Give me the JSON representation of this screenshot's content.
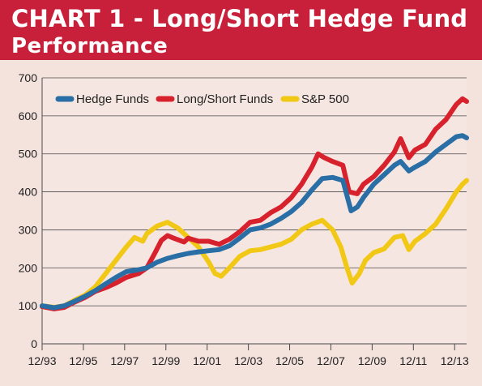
{
  "title": {
    "line1": "CHART 1 - Long/Short Hedge Fund",
    "line2": "Performance"
  },
  "colors": {
    "banner": "#c8203a",
    "background": "#f4e2dc",
    "plot_background": "#f6e6e1",
    "grid": "#4a4a4a",
    "hedge_funds": "#2a6ea6",
    "long_short": "#d7222e",
    "sp500": "#f2c816"
  },
  "chart_data": {
    "type": "line",
    "title": "CHART 1 - Long/Short Hedge Fund Performance",
    "xlabel": "",
    "ylabel": "",
    "ylim": [
      0,
      700
    ],
    "yticks": [
      "0",
      "100",
      "200",
      "300",
      "400",
      "500",
      "600",
      "700"
    ],
    "xticks": [
      "12/93",
      "12/95",
      "12/97",
      "12/99",
      "12/01",
      "12/03",
      "12/05",
      "12/07",
      "12/09",
      "12/11",
      "12/13"
    ],
    "xrange": [
      1993.92,
      2014.5
    ],
    "grid": true,
    "legend_position": "top-left",
    "series": [
      {
        "name": "Hedge Funds",
        "color": "#2a6ea6",
        "points": [
          [
            1993.92,
            100
          ],
          [
            1994.5,
            95
          ],
          [
            1995.0,
            100
          ],
          [
            1995.5,
            112
          ],
          [
            1996.0,
            125
          ],
          [
            1996.5,
            140
          ],
          [
            1997.0,
            158
          ],
          [
            1997.5,
            175
          ],
          [
            1998.0,
            190
          ],
          [
            1998.6,
            195
          ],
          [
            1999.0,
            200
          ],
          [
            1999.5,
            215
          ],
          [
            2000.0,
            225
          ],
          [
            2000.5,
            232
          ],
          [
            2001.0,
            238
          ],
          [
            2001.5,
            242
          ],
          [
            2002.0,
            245
          ],
          [
            2002.5,
            248
          ],
          [
            2003.0,
            258
          ],
          [
            2003.5,
            278
          ],
          [
            2004.0,
            300
          ],
          [
            2004.5,
            305
          ],
          [
            2005.0,
            315
          ],
          [
            2005.5,
            330
          ],
          [
            2006.0,
            348
          ],
          [
            2006.5,
            372
          ],
          [
            2007.0,
            405
          ],
          [
            2007.5,
            435
          ],
          [
            2008.0,
            438
          ],
          [
            2008.5,
            430
          ],
          [
            2008.9,
            350
          ],
          [
            2009.2,
            360
          ],
          [
            2009.5,
            385
          ],
          [
            2010.0,
            420
          ],
          [
            2010.5,
            445
          ],
          [
            2011.0,
            470
          ],
          [
            2011.3,
            480
          ],
          [
            2011.7,
            455
          ],
          [
            2012.0,
            465
          ],
          [
            2012.5,
            480
          ],
          [
            2013.0,
            505
          ],
          [
            2013.5,
            525
          ],
          [
            2014.0,
            545
          ],
          [
            2014.3,
            548
          ],
          [
            2014.5,
            542
          ]
        ]
      },
      {
        "name": "Long/Short Funds",
        "color": "#d7222e",
        "points": [
          [
            1993.92,
            98
          ],
          [
            1994.5,
            92
          ],
          [
            1995.0,
            96
          ],
          [
            1995.5,
            110
          ],
          [
            1996.0,
            122
          ],
          [
            1996.5,
            138
          ],
          [
            1997.0,
            148
          ],
          [
            1997.5,
            160
          ],
          [
            1998.0,
            175
          ],
          [
            1998.6,
            185
          ],
          [
            1999.0,
            200
          ],
          [
            1999.4,
            240
          ],
          [
            1999.7,
            272
          ],
          [
            2000.0,
            285
          ],
          [
            2000.3,
            278
          ],
          [
            2000.8,
            268
          ],
          [
            2001.0,
            278
          ],
          [
            2001.5,
            270
          ],
          [
            2002.0,
            270
          ],
          [
            2002.5,
            262
          ],
          [
            2003.0,
            275
          ],
          [
            2003.5,
            295
          ],
          [
            2004.0,
            320
          ],
          [
            2004.5,
            325
          ],
          [
            2005.0,
            345
          ],
          [
            2005.5,
            360
          ],
          [
            2006.0,
            385
          ],
          [
            2006.5,
            420
          ],
          [
            2007.0,
            465
          ],
          [
            2007.3,
            500
          ],
          [
            2007.6,
            490
          ],
          [
            2008.0,
            480
          ],
          [
            2008.5,
            470
          ],
          [
            2008.8,
            400
          ],
          [
            2009.2,
            395
          ],
          [
            2009.5,
            420
          ],
          [
            2010.0,
            440
          ],
          [
            2010.5,
            470
          ],
          [
            2011.0,
            505
          ],
          [
            2011.3,
            540
          ],
          [
            2011.7,
            490
          ],
          [
            2012.0,
            510
          ],
          [
            2012.5,
            525
          ],
          [
            2013.0,
            565
          ],
          [
            2013.5,
            590
          ],
          [
            2014.0,
            630
          ],
          [
            2014.3,
            645
          ],
          [
            2014.5,
            638
          ]
        ]
      },
      {
        "name": "S&P 500",
        "color": "#f2c816",
        "points": [
          [
            1993.92,
            100
          ],
          [
            1994.5,
            96
          ],
          [
            1995.0,
            100
          ],
          [
            1995.5,
            115
          ],
          [
            1996.0,
            128
          ],
          [
            1996.5,
            150
          ],
          [
            1997.0,
            185
          ],
          [
            1997.5,
            220
          ],
          [
            1998.0,
            255
          ],
          [
            1998.4,
            280
          ],
          [
            1998.8,
            270
          ],
          [
            1999.0,
            290
          ],
          [
            1999.5,
            310
          ],
          [
            2000.0,
            320
          ],
          [
            2000.5,
            305
          ],
          [
            2001.0,
            280
          ],
          [
            2001.5,
            255
          ],
          [
            2002.0,
            215
          ],
          [
            2002.3,
            185
          ],
          [
            2002.6,
            178
          ],
          [
            2003.0,
            200
          ],
          [
            2003.5,
            230
          ],
          [
            2004.0,
            245
          ],
          [
            2004.5,
            248
          ],
          [
            2005.0,
            255
          ],
          [
            2005.5,
            262
          ],
          [
            2006.0,
            275
          ],
          [
            2006.5,
            300
          ],
          [
            2007.0,
            315
          ],
          [
            2007.5,
            325
          ],
          [
            2008.0,
            300
          ],
          [
            2008.4,
            255
          ],
          [
            2008.7,
            200
          ],
          [
            2008.95,
            160
          ],
          [
            2009.3,
            185
          ],
          [
            2009.6,
            220
          ],
          [
            2010.0,
            240
          ],
          [
            2010.5,
            250
          ],
          [
            2011.0,
            280
          ],
          [
            2011.4,
            285
          ],
          [
            2011.7,
            248
          ],
          [
            2012.0,
            270
          ],
          [
            2012.5,
            290
          ],
          [
            2013.0,
            315
          ],
          [
            2013.5,
            355
          ],
          [
            2014.0,
            400
          ],
          [
            2014.3,
            420
          ],
          [
            2014.5,
            430
          ]
        ]
      }
    ]
  }
}
